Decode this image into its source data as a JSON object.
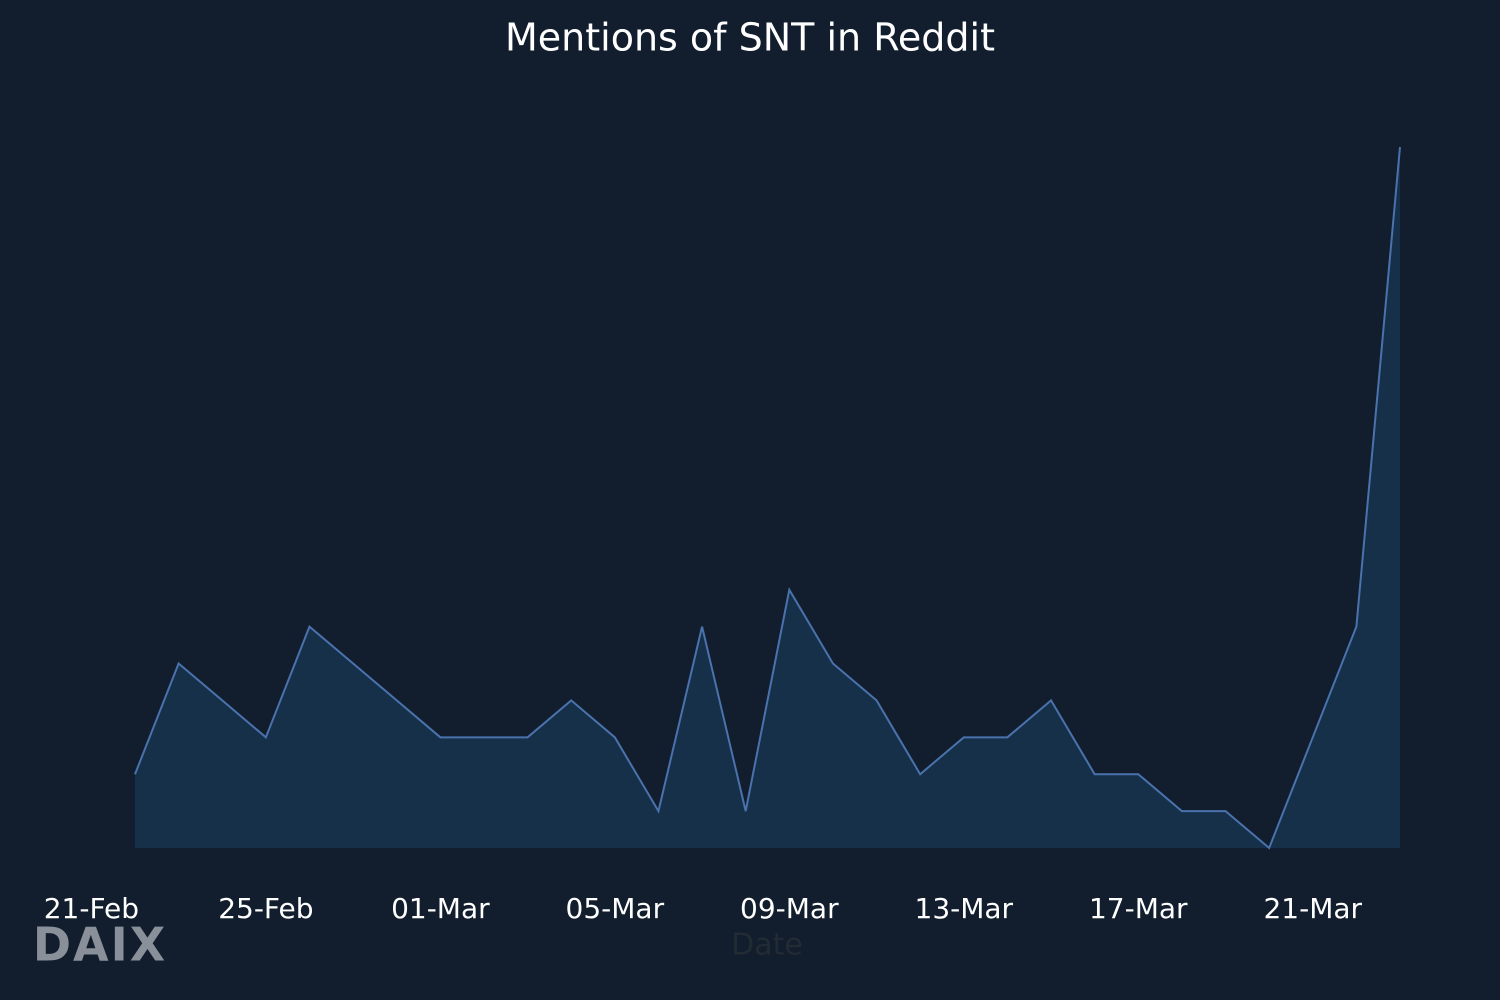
{
  "chart_data": {
    "type": "area",
    "title": "Mentions of SNT in Reddit",
    "xlabel": "Date",
    "watermark": "DAIX",
    "x": [
      "22-Feb",
      "23-Feb",
      "24-Feb",
      "25-Feb",
      "26-Feb",
      "27-Feb",
      "28-Feb",
      "01-Mar",
      "02-Mar",
      "03-Mar",
      "04-Mar",
      "05-Mar",
      "06-Mar",
      "07-Mar",
      "08-Mar",
      "09-Mar",
      "10-Mar",
      "11-Mar",
      "12-Mar",
      "13-Mar",
      "14-Mar",
      "15-Mar",
      "16-Mar",
      "17-Mar",
      "18-Mar",
      "19-Mar",
      "20-Mar",
      "21-Mar",
      "22-Mar",
      "23-Mar"
    ],
    "series": [
      {
        "name": "Mentions",
        "color": "#4a72ad",
        "fill": "#16304a",
        "values": [
          2,
          5,
          4,
          3,
          6,
          5,
          4,
          3,
          3,
          3,
          4,
          3,
          1,
          6,
          1,
          7,
          5,
          4,
          2,
          3,
          3,
          4,
          2,
          2,
          1,
          1,
          0,
          3,
          6,
          19
        ]
      }
    ],
    "xlim": [
      "22-Feb",
      "23-Mar"
    ],
    "xticks": [
      "21-Feb",
      "25-Feb",
      "01-Mar",
      "05-Mar",
      "09-Mar",
      "13-Mar",
      "17-Mar",
      "21-Mar"
    ],
    "ylim": [
      0,
      19
    ]
  }
}
